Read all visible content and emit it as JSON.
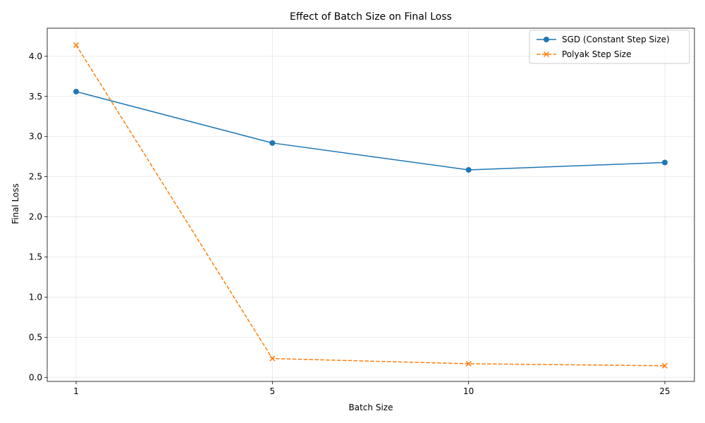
{
  "chart_data": {
    "type": "line",
    "title": "Effect of Batch Size on Final Loss",
    "xlabel": "Batch Size",
    "ylabel": "Final Loss",
    "categories": [
      "1",
      "5",
      "10",
      "25"
    ],
    "ylim": [
      -0.05,
      4.35
    ],
    "yticks": [
      "0.0",
      "0.5",
      "1.0",
      "1.5",
      "2.0",
      "2.5",
      "3.0",
      "3.5",
      "4.0"
    ],
    "grid": true,
    "legend_position": "top-right",
    "series": [
      {
        "name": "SGD (Constant Step Size)",
        "values": [
          3.56,
          2.92,
          2.585,
          2.677
        ],
        "color": "#1f77b4",
        "marker": "circle",
        "line_style": "solid"
      },
      {
        "name": "Polyak Step Size",
        "values": [
          4.14,
          0.235,
          0.17,
          0.145
        ],
        "color": "#ff7f0e",
        "marker": "x",
        "line_style": "dashed"
      }
    ]
  }
}
